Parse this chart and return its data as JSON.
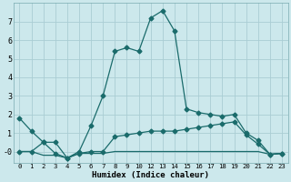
{
  "xlabel": "Humidex (Indice chaleur)",
  "bg_color": "#cce8ec",
  "grid_color": "#aacdd4",
  "line_color": "#1a6b6b",
  "xlim": [
    -0.5,
    22.5
  ],
  "ylim": [
    -0.6,
    8.0
  ],
  "yticks": [
    0,
    1,
    2,
    3,
    4,
    5,
    6,
    7
  ],
  "ytick_labels": [
    "-0",
    "1",
    "2",
    "3",
    "4",
    "5",
    "6",
    "7"
  ],
  "xtick_positions": [
    0,
    1,
    2,
    3,
    4,
    5,
    6,
    7,
    8,
    9,
    10,
    11,
    12,
    13,
    14,
    15,
    16,
    17,
    18,
    19,
    20,
    21,
    22
  ],
  "xtick_labels": [
    "0",
    "1",
    "2",
    "3",
    "4",
    "5",
    "6",
    "7",
    "8",
    "9",
    "10",
    "12",
    "13",
    "14",
    "15",
    "16",
    "17",
    "18",
    "19",
    "20",
    "21",
    "22",
    "23"
  ],
  "series1_x": [
    0,
    1,
    2,
    3,
    4,
    5,
    6,
    7,
    8,
    9,
    10,
    11,
    12,
    13,
    14,
    15,
    16,
    17,
    18,
    19,
    20,
    21,
    22
  ],
  "series1_y": [
    1.8,
    1.1,
    0.5,
    0.5,
    -0.35,
    0.0,
    1.4,
    3.0,
    5.4,
    5.6,
    5.4,
    7.2,
    7.6,
    6.5,
    2.3,
    2.1,
    2.0,
    1.9,
    2.0,
    1.0,
    0.6,
    -0.15,
    -0.1
  ],
  "series2_x": [
    0,
    1,
    2,
    3,
    4,
    5,
    6,
    7,
    8,
    9,
    10,
    11,
    12,
    13,
    14,
    15,
    16,
    17,
    18,
    19,
    20,
    21,
    22
  ],
  "series2_y": [
    0.0,
    0.0,
    0.5,
    -0.1,
    -0.35,
    -0.1,
    0.0,
    0.0,
    0.8,
    0.9,
    1.0,
    1.1,
    1.1,
    1.1,
    1.2,
    1.3,
    1.4,
    1.5,
    1.6,
    0.9,
    0.4,
    -0.15,
    -0.1
  ],
  "series3_x": [
    0,
    1,
    2,
    3,
    4,
    5,
    6,
    7,
    8,
    9,
    10,
    11,
    12,
    13,
    14,
    15,
    16,
    17,
    18,
    19,
    20,
    21,
    22
  ],
  "series3_y": [
    0.0,
    0.0,
    -0.2,
    -0.2,
    -0.35,
    -0.1,
    -0.1,
    -0.1,
    0.0,
    0.0,
    0.0,
    0.0,
    0.0,
    0.0,
    0.0,
    0.0,
    0.0,
    0.0,
    0.0,
    0.0,
    0.0,
    -0.15,
    -0.1
  ]
}
